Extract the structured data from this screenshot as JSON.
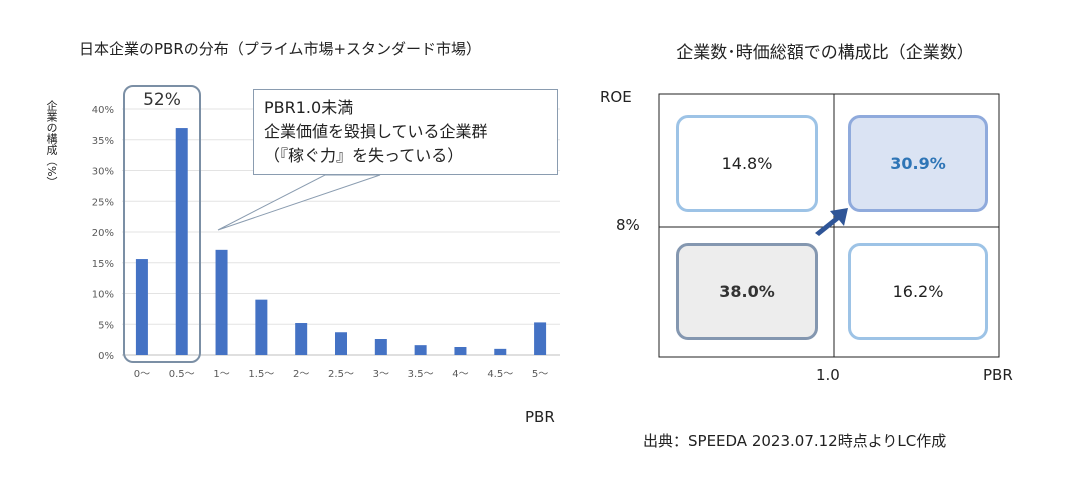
{
  "left": {
    "title": "日本企業のPBRの分布（プライム市場+スタンダード市場）",
    "ylabel": "企業の構成（%）",
    "xtitle": "PBR",
    "highlight_label": "52%",
    "callout": [
      "PBR1.0未満",
      "企業価値を毀損している企業群",
      "（『稼ぐ力』を失っている）"
    ]
  },
  "chart_data": [
    {
      "type": "bar",
      "title": "日本企業のPBRの分布（プライム市場+スタンダード市場）",
      "xlabel": "PBR",
      "ylabel": "企業の構成（%）",
      "categories": [
        "0〜",
        "0.5〜",
        "1〜",
        "1.5〜",
        "2〜",
        "2.5〜",
        "3〜",
        "3.5〜",
        "4〜",
        "4.5〜",
        "5〜"
      ],
      "values": [
        15.6,
        36.9,
        17.1,
        9.0,
        5.2,
        3.7,
        2.6,
        1.6,
        1.3,
        1.0,
        5.3
      ],
      "yticks": [
        "0%",
        "5%",
        "10%",
        "15%",
        "20%",
        "25%",
        "30%",
        "35%",
        "40%"
      ],
      "ylim": [
        0,
        40
      ],
      "grid": true,
      "color": "#4472c4"
    }
  ],
  "right": {
    "title": "企業数･時価総額での構成比（企業数）",
    "roe_label": "ROE",
    "roe_threshold": "8%",
    "pbr_threshold": "1.0",
    "pbr_label": "PBR",
    "quadrants": [
      {
        "value": "14.8%",
        "bg": "#ffffff",
        "border": "#9dc3e6",
        "color": "#222222"
      },
      {
        "value": "30.9%",
        "bg": "#dae3f3",
        "border": "#8faadc",
        "color": "#2e75b6"
      },
      {
        "value": "38.0%",
        "bg": "#ededed",
        "border": "#8497b0",
        "color": "#333333"
      },
      {
        "value": "16.2%",
        "bg": "#ffffff",
        "border": "#9dc3e6",
        "color": "#222222"
      }
    ],
    "arrow_color": "#2f5597"
  },
  "source": "出典：SPEEDA 2023.07.12時点よりLC作成"
}
